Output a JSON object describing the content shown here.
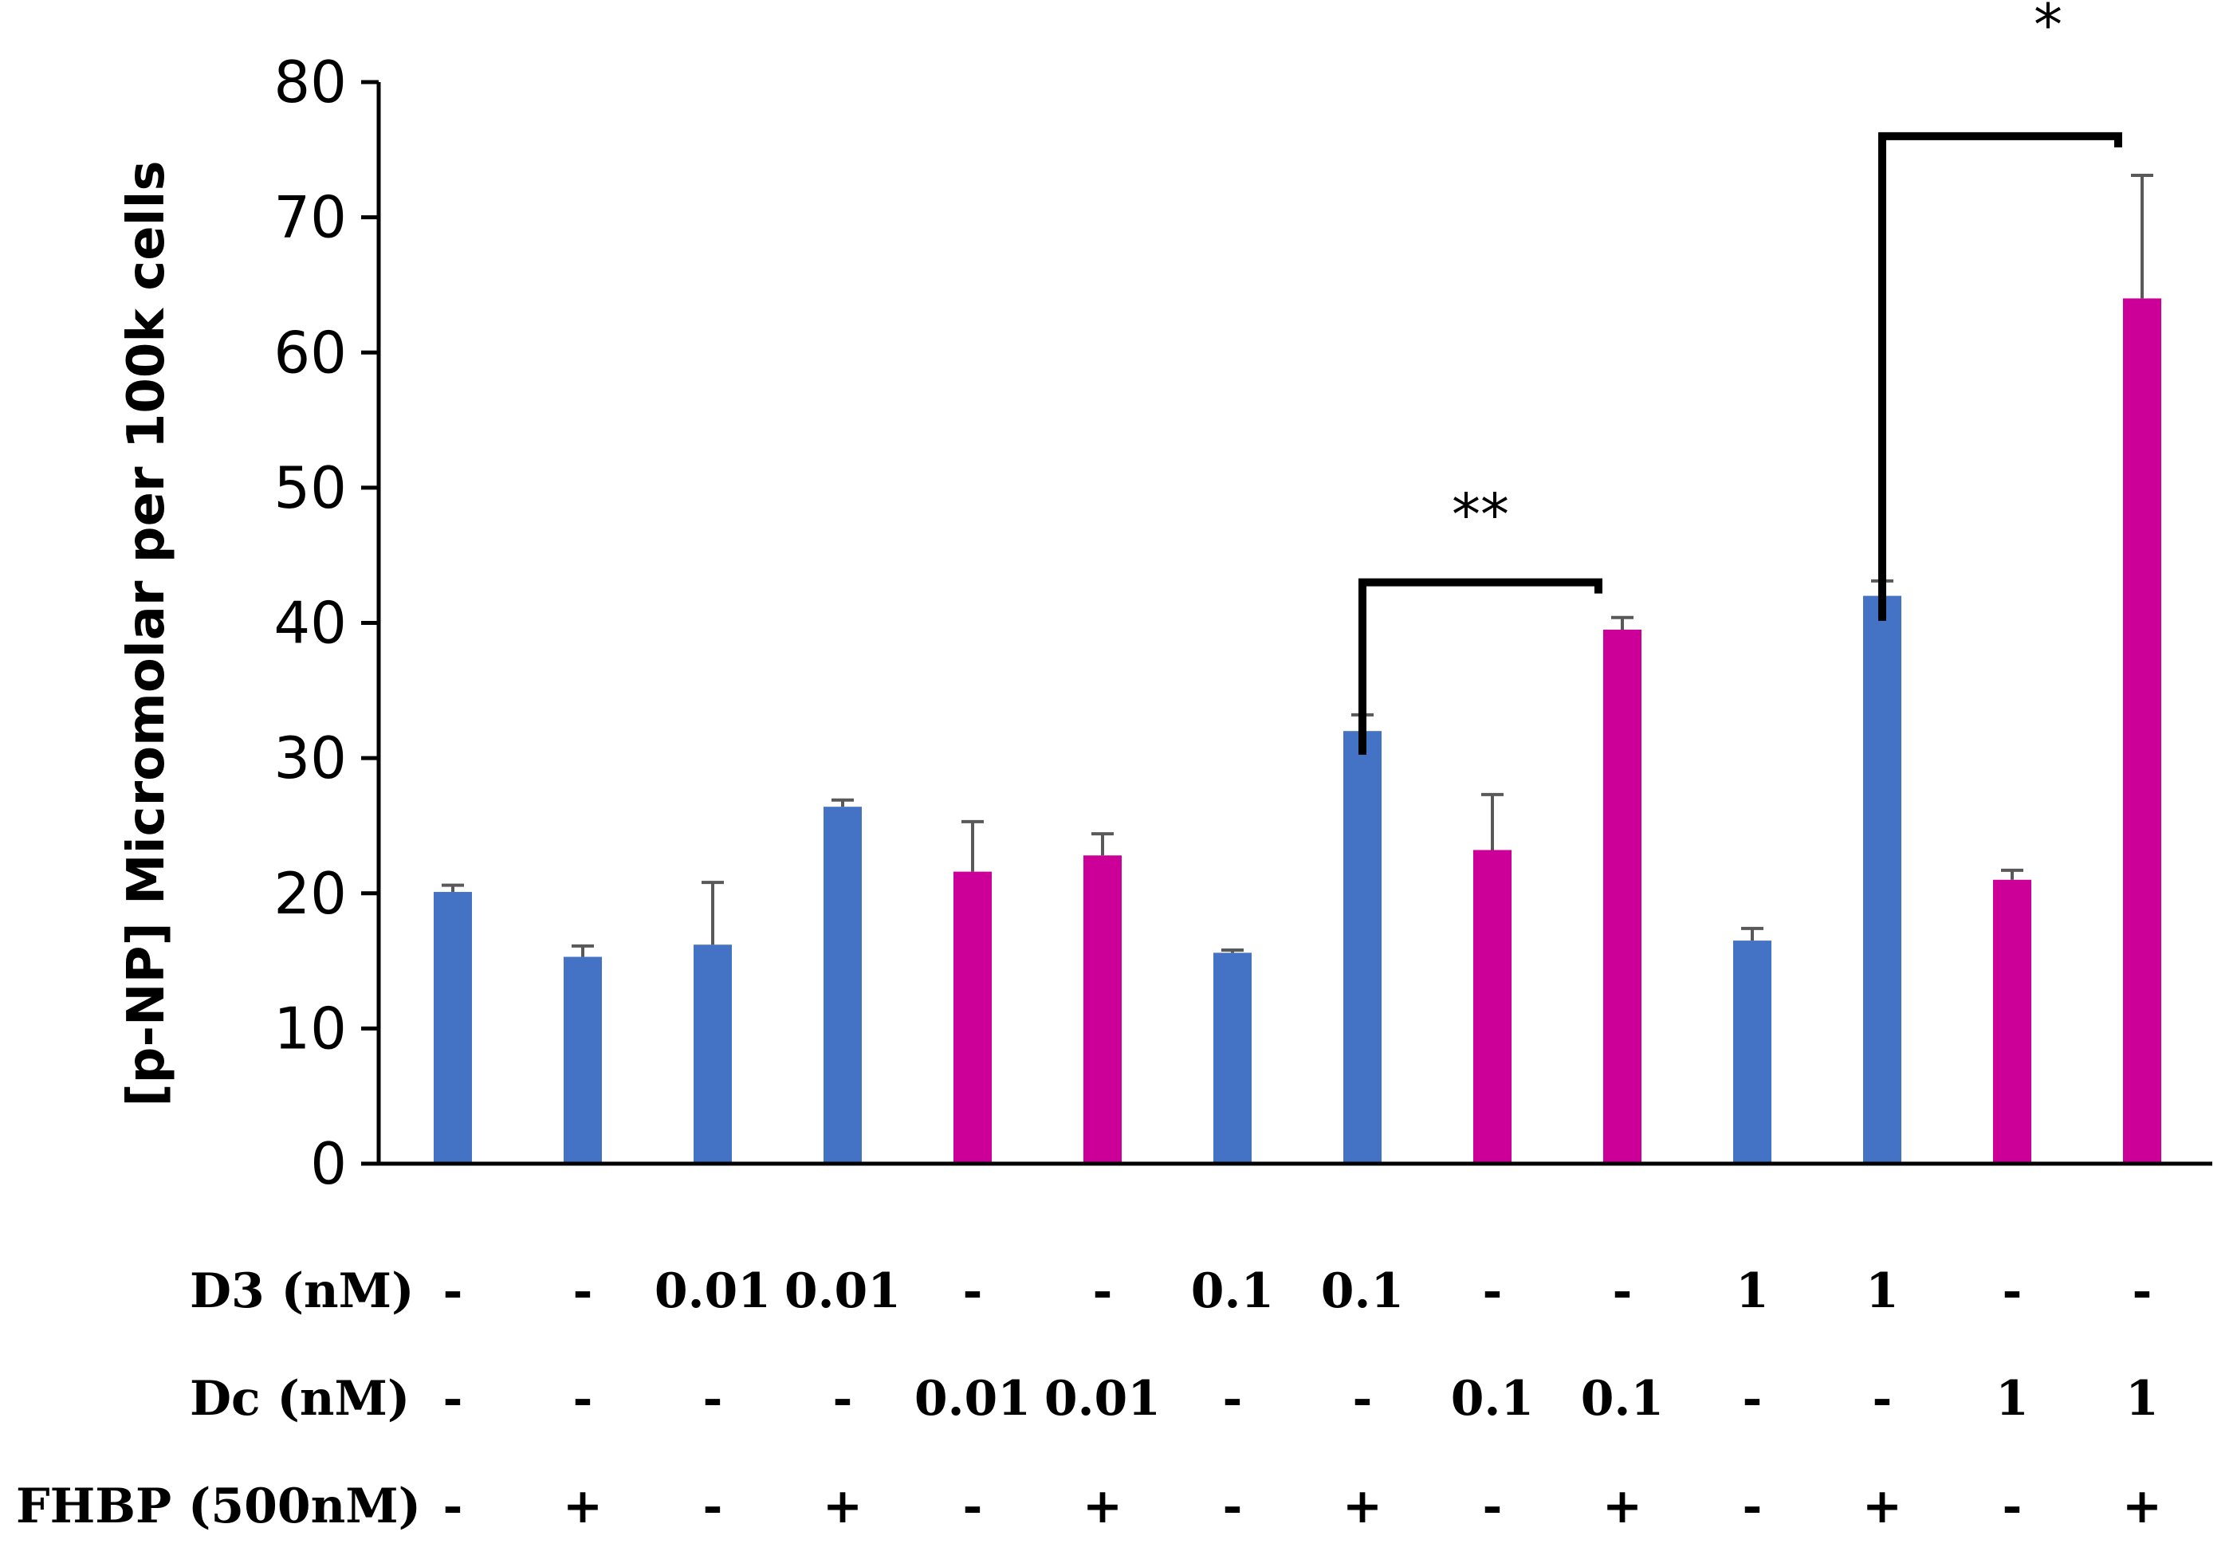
{
  "chart_data": {
    "type": "bar",
    "ylabel": "[p-NP] Micromolar per 100k cells",
    "xlabel": "",
    "title": "",
    "ylim": [
      0,
      80
    ],
    "yticks": [
      0,
      10,
      20,
      30,
      40,
      50,
      60,
      70,
      80
    ],
    "grid": false,
    "colors": {
      "D3": "#4472C4",
      "Dc": "#CC0099"
    },
    "bars": [
      {
        "series": "D3",
        "value": 20.1,
        "error": 0.5
      },
      {
        "series": "D3",
        "value": 15.3,
        "error": 0.8
      },
      {
        "series": "D3",
        "value": 16.2,
        "error": 4.6
      },
      {
        "series": "D3",
        "value": 26.4,
        "error": 0.5
      },
      {
        "series": "Dc",
        "value": 21.6,
        "error": 3.7
      },
      {
        "series": "Dc",
        "value": 22.8,
        "error": 1.6
      },
      {
        "series": "D3",
        "value": 15.6,
        "error": 0.2
      },
      {
        "series": "D3",
        "value": 32.0,
        "error": 1.2
      },
      {
        "series": "Dc",
        "value": 23.2,
        "error": 4.1
      },
      {
        "series": "Dc",
        "value": 39.5,
        "error": 0.9
      },
      {
        "series": "D3",
        "value": 16.5,
        "error": 0.9
      },
      {
        "series": "D3",
        "value": 42.0,
        "error": 1.1
      },
      {
        "series": "Dc",
        "value": 21.0,
        "error": 0.7
      },
      {
        "series": "Dc",
        "value": 64.0,
        "error": 9.1
      }
    ],
    "conditions": [
      {
        "label": "D3 (nM)",
        "values": [
          "-",
          "-",
          "0.01",
          "0.01",
          "-",
          "-",
          "0.1",
          "0.1",
          "-",
          "-",
          "1",
          "1",
          "-",
          "-"
        ]
      },
      {
        "label": "Dc (nM)",
        "values": [
          "-",
          "-",
          "-",
          "-",
          "0.01",
          "0.01",
          "-",
          "-",
          "0.1",
          "0.1",
          "-",
          "-",
          "1",
          "1"
        ]
      },
      {
        "label": "FHBP (500nM)",
        "values": [
          "-",
          "+",
          "-",
          "+",
          "-",
          "+",
          "-",
          "+",
          "-",
          "+",
          "-",
          "+",
          "-",
          "+"
        ]
      }
    ],
    "annotations": [
      {
        "text": "**",
        "from_bar": 8,
        "to_bar": 10,
        "bracket_y": 43
      },
      {
        "text": "*",
        "from_bar": 12,
        "to_bar": 14,
        "bracket_y": 76
      }
    ]
  }
}
